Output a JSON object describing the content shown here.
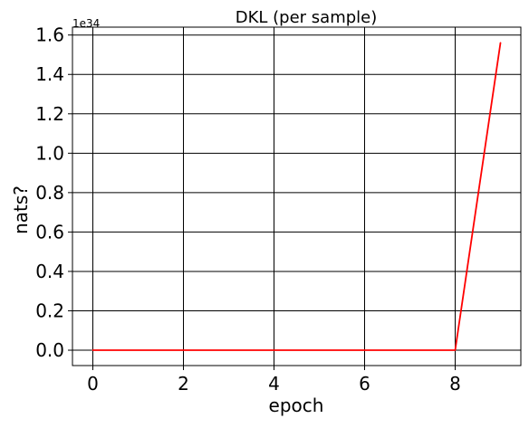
{
  "chart_data": {
    "type": "line",
    "title": "DKL (per sample)",
    "xlabel": "epoch",
    "ylabel": "nats?",
    "y_offset_label": "1e34",
    "y_scale_factor": 1e+34,
    "xlim": [
      -0.45,
      9.45
    ],
    "ylim": [
      -0.078,
      1.64
    ],
    "x_ticks": [
      0,
      2,
      4,
      6,
      8
    ],
    "x_tick_labels": [
      "0",
      "2",
      "4",
      "6",
      "8"
    ],
    "y_ticks": [
      0.0,
      0.2,
      0.4,
      0.6,
      0.8,
      1.0,
      1.2,
      1.4,
      1.6
    ],
    "y_tick_labels": [
      "0.0",
      "0.2",
      "0.4",
      "0.6",
      "0.8",
      "1.0",
      "1.2",
      "1.4",
      "1.6"
    ],
    "grid": true,
    "series": [
      {
        "color": "#ff0000",
        "x": [
          0,
          1,
          2,
          3,
          4,
          5,
          6,
          7,
          8,
          9
        ],
        "y": [
          0.0,
          0.0,
          0.0,
          0.0,
          0.0,
          0.0,
          0.0,
          0.0,
          0.0,
          1.56
        ]
      }
    ]
  }
}
